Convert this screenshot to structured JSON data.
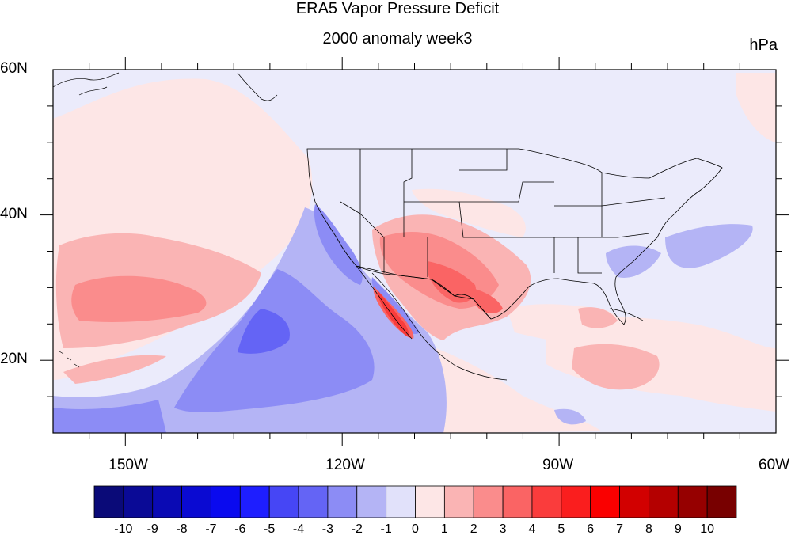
{
  "title": "ERA5 Vapor Pressure Deficit",
  "subtitle": "2000 anomaly week3",
  "units": "hPa",
  "map": {
    "lon_range": [
      -160,
      -60
    ],
    "lat_range": [
      10,
      60
    ],
    "lat_tick_labels": [
      "60N",
      "40N",
      "20N"
    ],
    "lat_tick_values": [
      60,
      40,
      20
    ],
    "lon_tick_labels": [
      "150W",
      "120W",
      "90W",
      "60W"
    ],
    "lon_tick_values": [
      -150,
      -120,
      -90,
      -60
    ]
  },
  "colorbar": {
    "labels": [
      "-10",
      "-9",
      "-8",
      "-7",
      "-6",
      "-5",
      "-4",
      "-3",
      "-2",
      "-1",
      "0",
      "1",
      "2",
      "3",
      "4",
      "5",
      "6",
      "7",
      "8",
      "9",
      "10"
    ],
    "colors": [
      "#0a0a78",
      "#0a0a96",
      "#0a0ab4",
      "#0a0ad2",
      "#0a0aef",
      "#1e1eff",
      "#4646f5",
      "#6464f5",
      "#8c8cf5",
      "#b4b4f5",
      "#e1e1fa",
      "#fde6e6",
      "#fab4b4",
      "#fa8c8c",
      "#fa6464",
      "#fa3c3c",
      "#fa1e1e",
      "#fa0000",
      "#d20000",
      "#b40000",
      "#960000",
      "#780000"
    ]
  },
  "field_colors": {
    "ocean_base": "#ebebfb",
    "weak_positive": "#fde6e6",
    "positive_1": "#fab4b4",
    "positive_2": "#fa8c8c",
    "positive_3": "#fa6464",
    "positive_4": "#fa3c3c",
    "negative_1": "#b4b4f5",
    "negative_2": "#8c8cf5",
    "negative_3": "#6464f5",
    "negative_4": "#4646f5",
    "outline": "#000000"
  }
}
